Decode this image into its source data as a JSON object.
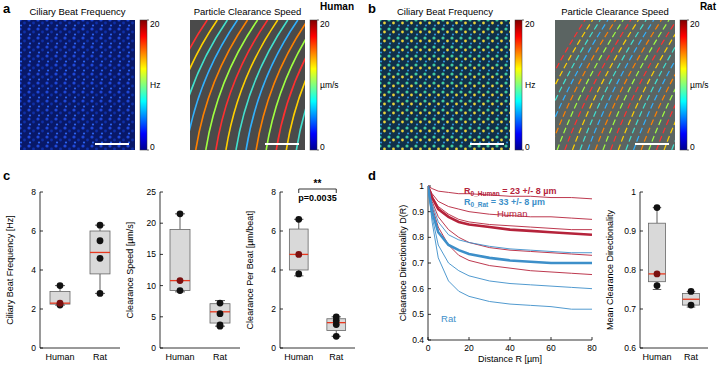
{
  "chart_data": [
    {
      "type": "image",
      "panel": "a",
      "header": "Human",
      "title": "Ciliary Beat Frequency",
      "colorbar_lim": [
        0,
        20
      ],
      "colorbar_ticks": [
        0,
        20
      ],
      "colorbar_label": "Hz"
    },
    {
      "type": "image",
      "title": "Particle Clearance Speed",
      "colorbar_lim": [
        0,
        20
      ],
      "colorbar_ticks": [
        0,
        20
      ],
      "colorbar_label": "µm/s"
    },
    {
      "type": "image",
      "panel": "b",
      "header": "Rat",
      "title": "Ciliary Beat Frequency",
      "colorbar_lim": [
        0,
        20
      ],
      "colorbar_ticks": [
        0,
        20
      ],
      "colorbar_label": "Hz"
    },
    {
      "type": "image",
      "title": "Particle Clearance Speed",
      "colorbar_lim": [
        0,
        20
      ],
      "colorbar_ticks": [
        0,
        20
      ],
      "colorbar_label": "µm/s"
    },
    {
      "type": "box",
      "panel": "c",
      "y_label": "Ciliary Beat Frequency [Hz]",
      "categories": [
        "Human",
        "Rat"
      ],
      "ylim": [
        0,
        8
      ],
      "yticks": [
        0,
        2,
        4,
        6,
        8
      ],
      "boxes": [
        {
          "points": [
            2.2,
            2.3,
            3.2
          ],
          "median": 2.3,
          "q1": 2.25,
          "q3": 2.9,
          "whisker_low": 2.2,
          "whisker_high": 3.2
        },
        {
          "points": [
            2.8,
            4.6,
            5.5,
            6.3
          ],
          "median": 4.9,
          "q1": 3.8,
          "q3": 6.0,
          "whisker_low": 2.8,
          "whisker_high": 6.3
        }
      ]
    },
    {
      "type": "box",
      "y_label": "Clearance Speed [µm/s]",
      "categories": [
        "Human",
        "Rat"
      ],
      "ylim": [
        0,
        25
      ],
      "yticks": [
        0,
        5,
        10,
        15,
        20,
        25
      ],
      "boxes": [
        {
          "points": [
            9.2,
            10.8,
            21.5
          ],
          "median": 10.8,
          "q1": 9.2,
          "q3": 19.0,
          "whisker_low": 9.0,
          "whisker_high": 21.5
        },
        {
          "points": [
            3.5,
            3.7,
            5.5,
            7.2
          ],
          "median": 5.8,
          "q1": 4.0,
          "q3": 7.1,
          "whisker_low": 3.5,
          "whisker_high": 7.6
        }
      ]
    },
    {
      "type": "box",
      "y_label": "Clearance Per Beat [µm/beat]",
      "categories": [
        "Human",
        "Rat"
      ],
      "ylim": [
        0,
        8
      ],
      "yticks": [
        0,
        2,
        4,
        6,
        8
      ],
      "annotations": [
        "**",
        "p=0.0035"
      ],
      "boxes": [
        {
          "points": [
            3.8,
            4.8,
            6.6
          ],
          "median": 4.8,
          "q1": 4.0,
          "q3": 6.1,
          "whisker_low": 3.7,
          "whisker_high": 6.6
        },
        {
          "points": [
            0.6,
            1.2,
            1.4,
            1.6
          ],
          "median": 1.3,
          "q1": 0.9,
          "q3": 1.5,
          "whisker_low": 0.6,
          "whisker_high": 1.6
        }
      ]
    },
    {
      "type": "line",
      "panel": "d",
      "x_label": "Distance R [µm]",
      "y_label": "Clearance Directionality D(R)",
      "xlim": [
        0,
        80
      ],
      "xticks": [
        0,
        20,
        40,
        60,
        80
      ],
      "ylim": [
        0.4,
        1
      ],
      "yticks": [
        0.4,
        0.5,
        0.6,
        0.7,
        0.8,
        0.9,
        1
      ],
      "x": [
        0,
        2,
        5,
        10,
        15,
        20,
        30,
        40,
        50,
        60,
        70,
        80
      ],
      "labels": [
        {
          "text": "Human",
          "color": "#b5233b"
        },
        {
          "text": "Rat",
          "color": "#3d8fc9"
        }
      ],
      "annotations": [
        {
          "text": "R",
          "subscript": "0_Human",
          "suffix": " = 23 +/- 8 µm",
          "color": "#b5233b"
        },
        {
          "text": "R",
          "subscript": "0_Rat",
          "suffix": " = 33 +/- 8 µm",
          "color": "#3d8fc9"
        }
      ],
      "series": [
        {
          "color": "#b5233b",
          "line_style": "solid",
          "values": [
            1,
            0.99,
            0.98,
            0.975,
            0.97,
            0.97,
            0.965,
            0.96,
            0.96,
            0.955,
            0.955,
            0.95
          ]
        },
        {
          "color": "#b5233b",
          "line_style": "solid",
          "values": [
            1,
            0.97,
            0.94,
            0.92,
            0.91,
            0.9,
            0.89,
            0.885,
            0.88,
            0.88,
            0.875,
            0.87
          ]
        },
        {
          "color": "#b5233b",
          "line_style": "solid",
          "values": [
            1,
            0.96,
            0.92,
            0.89,
            0.87,
            0.86,
            0.85,
            0.845,
            0.84,
            0.835,
            0.83,
            0.83
          ]
        },
        {
          "color": "#b5233b",
          "line_style": "solid",
          "values": [
            1,
            0.94,
            0.88,
            0.83,
            0.8,
            0.78,
            0.76,
            0.75,
            0.745,
            0.74,
            0.735,
            0.73
          ]
        },
        {
          "color": "#b5233b",
          "line_style": "solid",
          "values": [
            1,
            0.92,
            0.84,
            0.77,
            0.73,
            0.71,
            0.69,
            0.68,
            0.67,
            0.665,
            0.66,
            0.655
          ]
        },
        {
          "color": "#3d8fc9",
          "line_style": "solid",
          "values": [
            1,
            0.93,
            0.86,
            0.81,
            0.79,
            0.78,
            0.765,
            0.755,
            0.75,
            0.745,
            0.74,
            0.74
          ]
        },
        {
          "color": "#3d8fc9",
          "line_style": "solid",
          "values": [
            1,
            0.88,
            0.77,
            0.7,
            0.67,
            0.65,
            0.63,
            0.62,
            0.615,
            0.61,
            0.605,
            0.6
          ]
        },
        {
          "color": "#3d8fc9",
          "line_style": "solid",
          "values": [
            1,
            0.86,
            0.72,
            0.63,
            0.59,
            0.57,
            0.55,
            0.54,
            0.535,
            0.53,
            0.52,
            0.52
          ]
        },
        {
          "color": "#b5233b",
          "line_style": "bold",
          "values": [
            1,
            0.955,
            0.91,
            0.88,
            0.86,
            0.85,
            0.84,
            0.83,
            0.825,
            0.82,
            0.815,
            0.81
          ]
        },
        {
          "color": "#3d8fc9",
          "line_style": "bold",
          "values": [
            1,
            0.9,
            0.82,
            0.77,
            0.75,
            0.735,
            0.72,
            0.71,
            0.705,
            0.7,
            0.7,
            0.7
          ]
        }
      ]
    },
    {
      "type": "box",
      "y_label": "Mean Clearance Directionality",
      "categories": [
        "Human",
        "Rat"
      ],
      "ylim": [
        0.6,
        1
      ],
      "yticks": [
        0.6,
        0.7,
        0.8,
        0.9,
        1
      ],
      "boxes": [
        {
          "points": [
            0.76,
            0.79,
            0.96
          ],
          "median": 0.79,
          "q1": 0.77,
          "q3": 0.92,
          "whisker_low": 0.75,
          "whisker_high": 0.96
        },
        {
          "points": [
            0.71,
            0.745
          ],
          "median": 0.725,
          "q1": 0.71,
          "q3": 0.74,
          "whisker_low": 0.705,
          "whisker_high": 0.745
        }
      ]
    }
  ]
}
